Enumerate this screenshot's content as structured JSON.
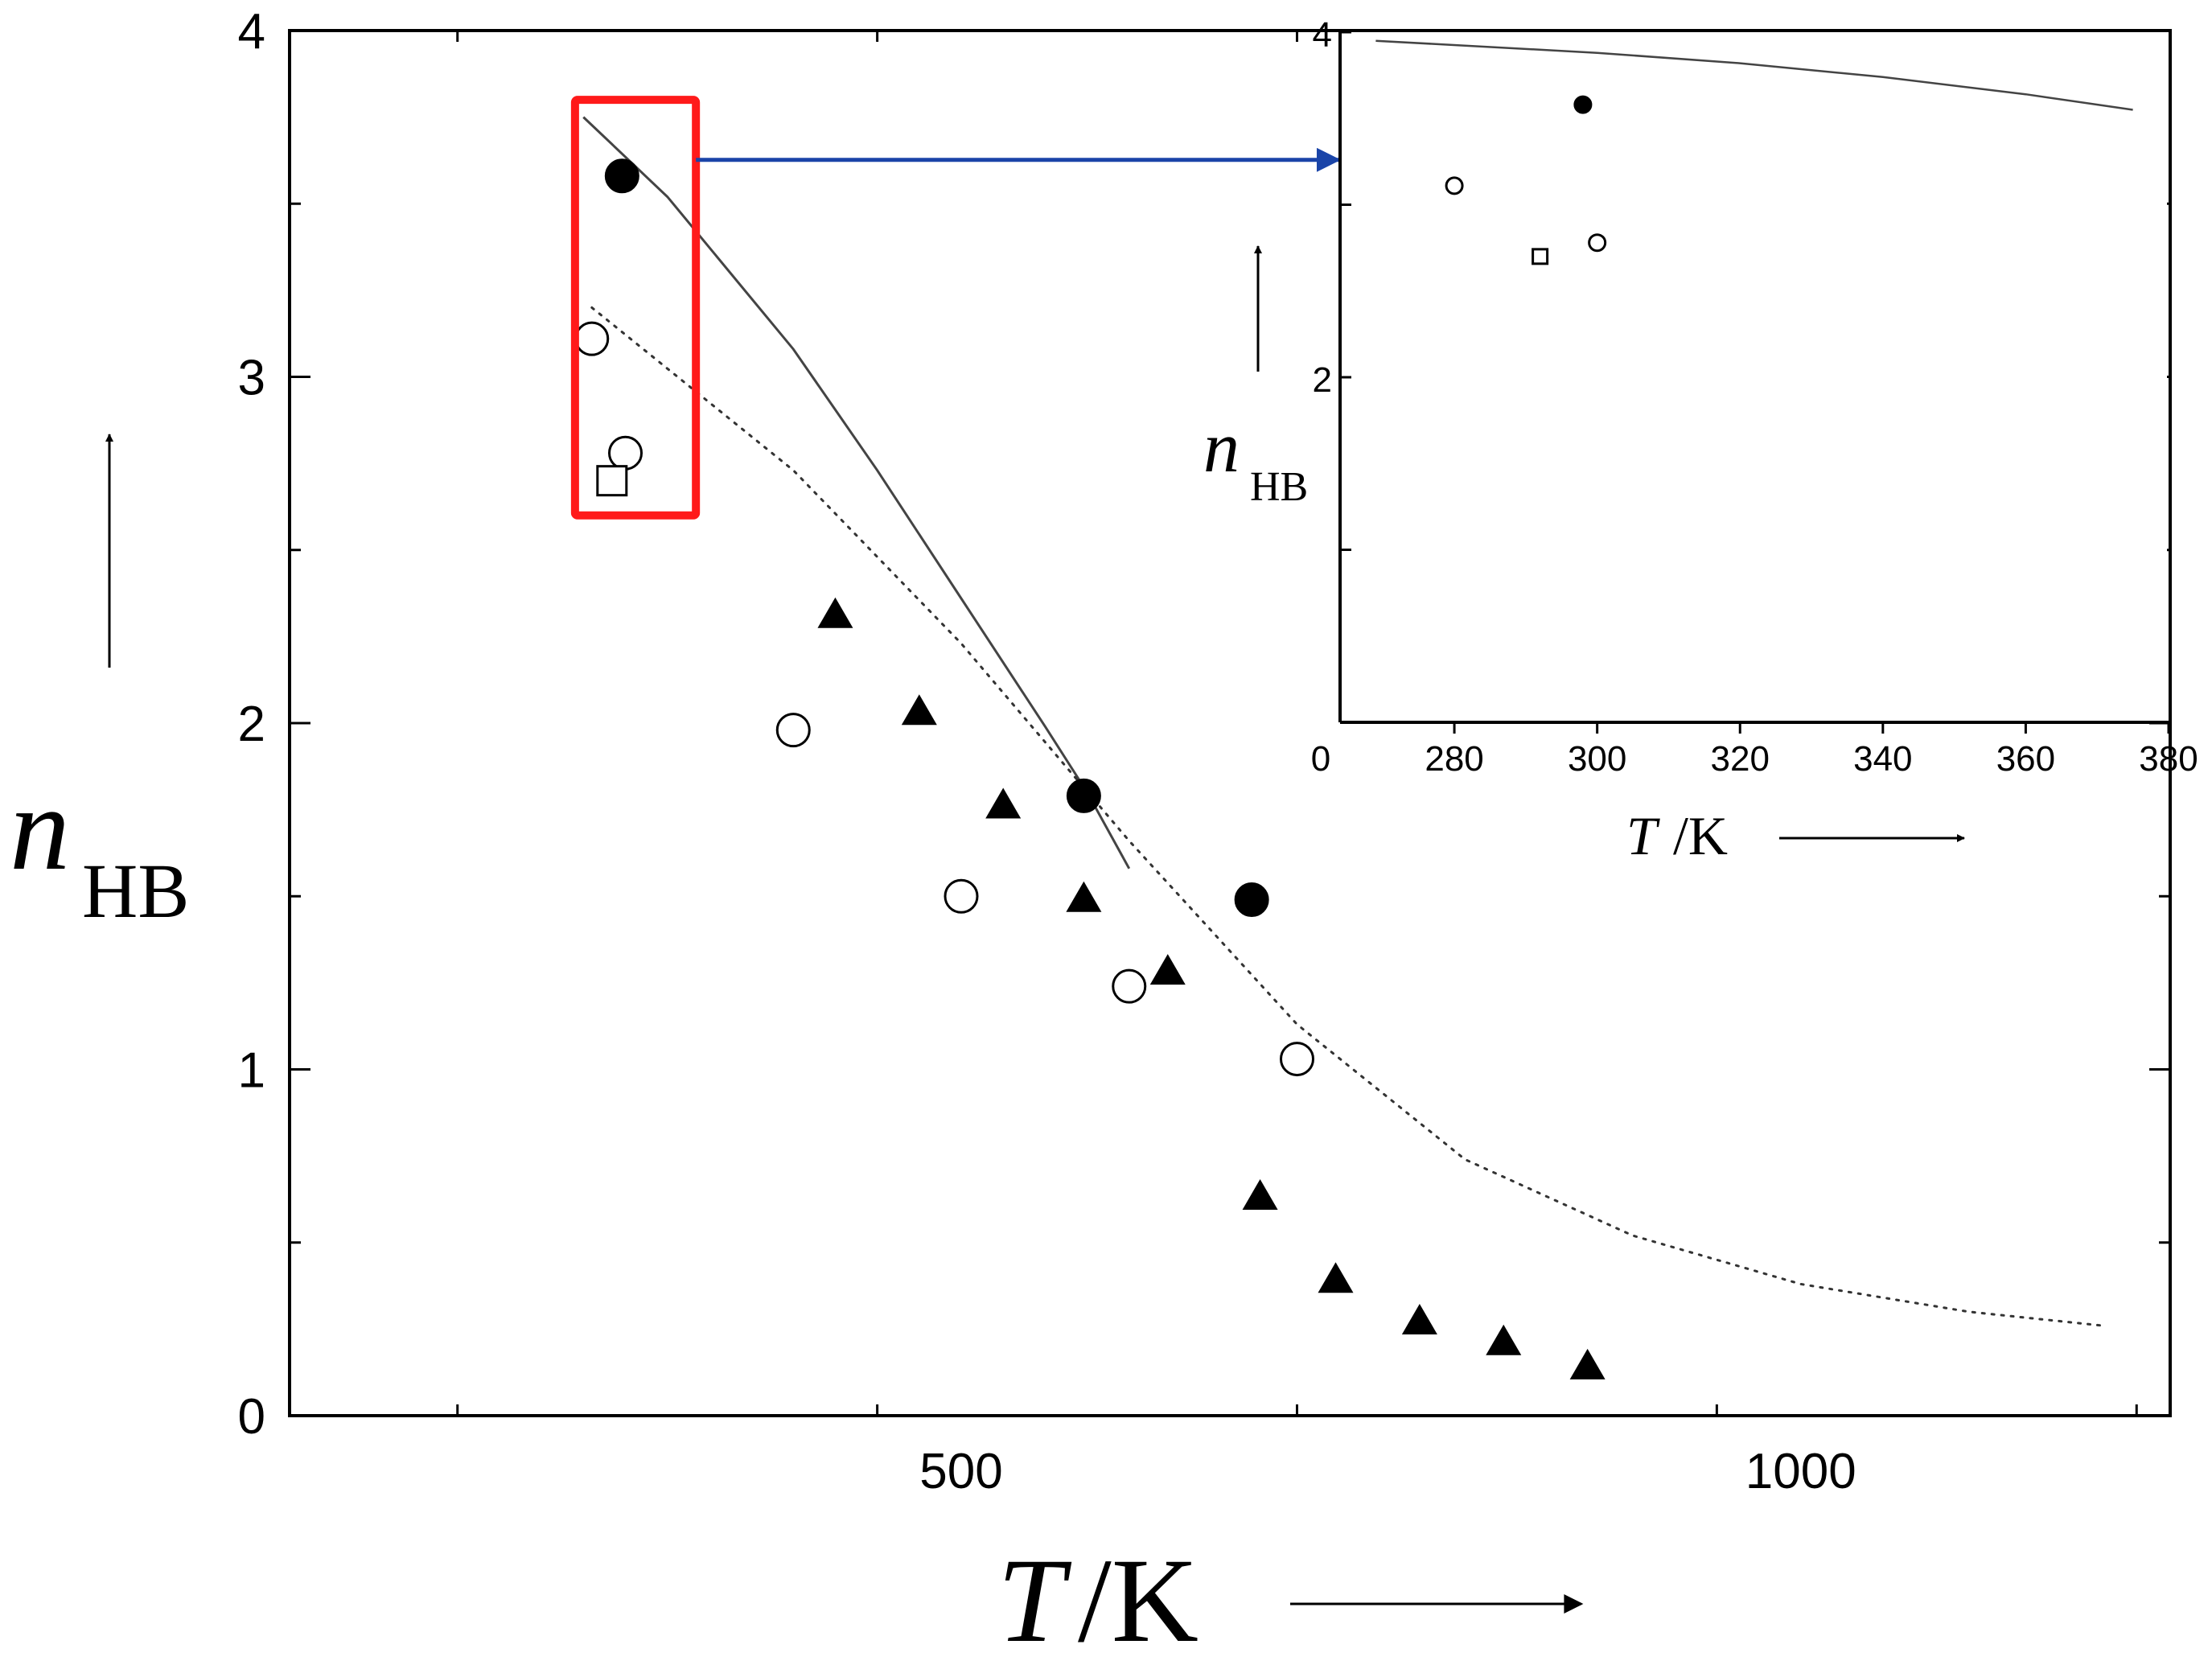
{
  "chart_data": [
    {
      "type": "scatter",
      "xlabel": "T /K",
      "ylabel": "n_HB",
      "xlim": [
        100,
        1220
      ],
      "ylim": [
        0,
        4
      ],
      "xticks": [
        500,
        1000
      ],
      "yticks": [
        0,
        1,
        2,
        3,
        4
      ],
      "grid": false,
      "series": [
        {
          "marker": "filled-circle",
          "points": [
            [
              298,
              3.58
            ],
            [
              573,
              1.79
            ],
            [
              673,
              1.49
            ]
          ]
        },
        {
          "marker": "open-circle",
          "points": [
            [
              280,
              3.11
            ],
            [
              300,
              2.78
            ],
            [
              400,
              1.98
            ],
            [
              500,
              1.5
            ],
            [
              600,
              1.24
            ],
            [
              700,
              1.03
            ]
          ]
        },
        {
          "marker": "open-square",
          "points": [
            [
              292,
              2.7
            ]
          ]
        },
        {
          "marker": "filled-triangle",
          "points": [
            [
              425,
              2.31
            ],
            [
              475,
              2.03
            ],
            [
              525,
              1.76
            ],
            [
              573,
              1.49
            ],
            [
              623,
              1.28
            ],
            [
              678,
              0.63
            ],
            [
              723,
              0.39
            ],
            [
              773,
              0.27
            ],
            [
              823,
              0.21
            ],
            [
              873,
              0.14
            ]
          ]
        },
        {
          "line": "solid",
          "points": [
            [
              275,
              3.75
            ],
            [
              325,
              3.52
            ],
            [
              400,
              3.08
            ],
            [
              450,
              2.73
            ],
            [
              500,
              2.36
            ],
            [
              550,
              1.99
            ],
            [
              575,
              1.8
            ],
            [
              600,
              1.58
            ]
          ]
        },
        {
          "line": "dotted",
          "points": [
            [
              280,
              3.2
            ],
            [
              400,
              2.73
            ],
            [
              500,
              2.23
            ],
            [
              600,
              1.66
            ],
            [
              700,
              1.13
            ],
            [
              800,
              0.74
            ],
            [
              900,
              0.52
            ],
            [
              1000,
              0.38
            ],
            [
              1100,
              0.3
            ],
            [
              1180,
              0.26
            ]
          ]
        }
      ],
      "annotations": {
        "highlight_box": {
          "x_range": [
            270,
            342
          ],
          "y_range": [
            2.6,
            3.8
          ],
          "color": "#ff1a1a"
        },
        "arrow_color": "#1a44a8"
      }
    },
    {
      "type": "scatter",
      "role": "inset",
      "xlabel": "T /K",
      "ylabel": "n_HB",
      "xlim": [
        264,
        380
      ],
      "ylim": [
        0,
        4
      ],
      "xticks": [
        280,
        300,
        320,
        340,
        360,
        380
      ],
      "yticks": [
        2,
        4
      ],
      "origin_label": "0",
      "grid": false,
      "series": [
        {
          "marker": "filled-circle",
          "points": [
            [
              298,
              3.58
            ]
          ]
        },
        {
          "marker": "open-circle",
          "points": [
            [
              280,
              3.11
            ],
            [
              300,
              2.78
            ]
          ]
        },
        {
          "marker": "open-square",
          "points": [
            [
              292,
              2.7
            ]
          ]
        },
        {
          "line": "solid",
          "points": [
            [
              269,
              3.95
            ],
            [
              300,
              3.88
            ],
            [
              320,
              3.82
            ],
            [
              340,
              3.74
            ],
            [
              360,
              3.64
            ],
            [
              375,
              3.55
            ]
          ]
        }
      ]
    }
  ]
}
